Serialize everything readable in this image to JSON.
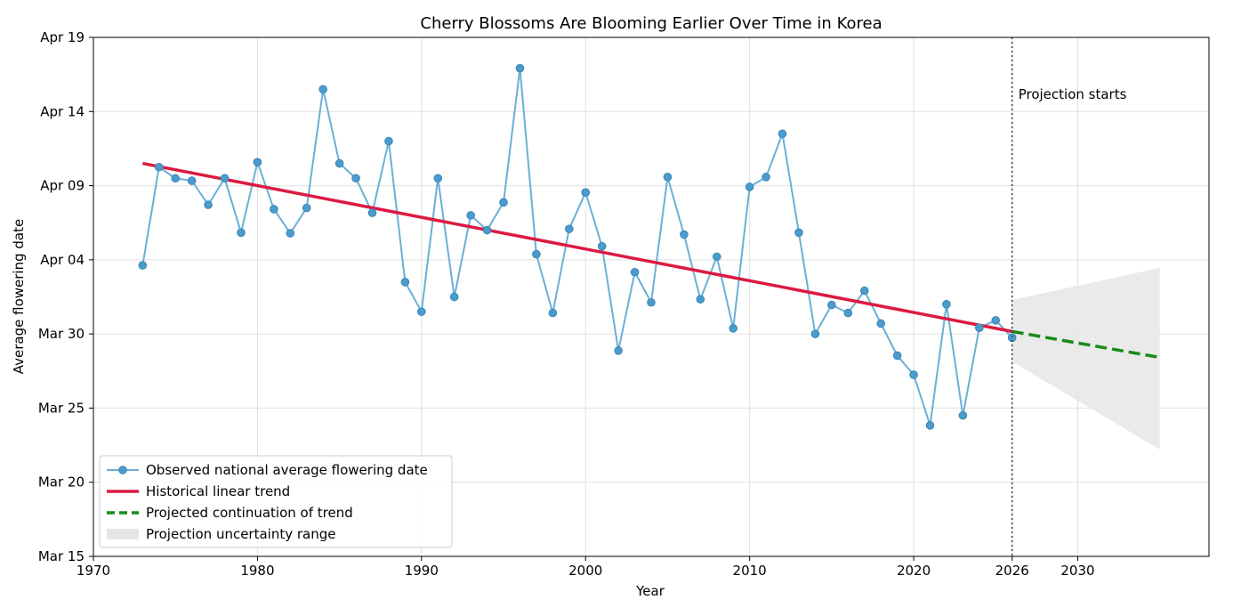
{
  "chart_data": {
    "type": "line",
    "title": "Cherry Blossoms Are Blooming Earlier Over Time in Korea",
    "xlabel": "Year",
    "ylabel": "Average flowering date",
    "xlim": [
      1970,
      2038
    ],
    "ylim": [
      "Mar 15",
      "Apr 19"
    ],
    "x_ticks": [
      1970,
      1980,
      1990,
      2000,
      2010,
      2020,
      2026,
      2030
    ],
    "x_tick_labels": [
      "1970",
      "1980",
      "1990",
      "2000",
      "2010",
      "2020",
      "2026",
      "2030"
    ],
    "y_ticks": [
      "Mar 15",
      "Mar 20",
      "Mar 25",
      "Mar 30",
      "Apr 04",
      "Apr 09",
      "Apr 14",
      "Apr 19"
    ],
    "y_tick_labels": [
      "Mar 15",
      "Mar 20",
      "Mar 25",
      "Mar 30",
      "Apr 04",
      "Apr 09",
      "Apr 14",
      "Apr 19"
    ],
    "grid": true,
    "legend_position": "lower-left",
    "annotation": {
      "text": "Projection starts",
      "x": 2026
    },
    "series": [
      {
        "name": "Observed national average flowering date",
        "kind": "line-markers",
        "color": "#6ab0d6",
        "x": [
          1973,
          1974,
          1975,
          1976,
          1977,
          1978,
          1979,
          1980,
          1981,
          1982,
          1983,
          1984,
          1985,
          1986,
          1987,
          1988,
          1989,
          1990,
          1991,
          1992,
          1993,
          1994,
          1995,
          1996,
          1997,
          1998,
          1999,
          2000,
          2001,
          2002,
          2003,
          2004,
          2005,
          2006,
          2007,
          2008,
          2009,
          2010,
          2011,
          2012,
          2013,
          2014,
          2015,
          2016,
          2017,
          2018,
          2019,
          2020,
          2021,
          2022,
          2023,
          2024,
          2025,
          2026
        ],
        "y": [
          "Apr 03 15:00",
          "Apr 10 06:00",
          "Apr 09 12:00",
          "Apr 09 08:00",
          "Apr 07 17:00",
          "Apr 09 12:00",
          "Apr 05 20:00",
          "Apr 10 14:00",
          "Apr 07 10:00",
          "Apr 05 19:00",
          "Apr 07 12:00",
          "Apr 15 12:00",
          "Apr 10 12:00",
          "Apr 09 12:00",
          "Apr 07 04:00",
          "Apr 12 00:00",
          "Apr 02 12:00",
          "Mar 31 12:00",
          "Apr 09 12:00",
          "Apr 01 12:00",
          "Apr 07 00:00",
          "Apr 06 00:00",
          "Apr 07 21:00",
          "Apr 16 22:00",
          "Apr 04 09:00",
          "Mar 31 10:00",
          "Apr 06 02:00",
          "Apr 08 13:00",
          "Apr 04 22:00",
          "Mar 28 21:00",
          "Apr 03 04:00",
          "Apr 01 03:00",
          "Apr 09 14:00",
          "Apr 05 17:00",
          "Apr 01 08:00",
          "Apr 04 05:00",
          "Mar 30 09:00",
          "Apr 08 22:00",
          "Apr 09 14:00",
          "Apr 12 12:00",
          "Apr 05 20:00",
          "Mar 30 00:00",
          "Mar 31 23:00",
          "Mar 31 10:00",
          "Apr 01 22:00",
          "Mar 30 17:00",
          "Mar 28 13:00",
          "Mar 27 06:00",
          "Mar 23 20:00",
          "Apr 01 00:00",
          "Mar 24 12:00",
          "Mar 30 10:00",
          "Mar 30 22:00",
          "Mar 29 18:00"
        ]
      },
      {
        "name": "Historical linear trend",
        "kind": "line",
        "color": "#dc1a42",
        "x": [
          1973,
          2026
        ],
        "y": [
          "Apr 10 12:00",
          "Mar 30 04:00"
        ]
      },
      {
        "name": "Projected continuation of trend",
        "kind": "dashed-line",
        "color": "#1a8a1a",
        "x": [
          2026,
          2035
        ],
        "y": [
          "Mar 30 04:00",
          "Mar 28 10:00"
        ]
      },
      {
        "name": "Projection uncertainty range",
        "kind": "band",
        "color": "#e6e6e6",
        "x": [
          2026,
          2035
        ],
        "lower": [
          "Mar 28 03:00",
          "Mar 22 05:00"
        ],
        "upper": [
          "Apr 01 07:00",
          "Apr 03 11:00"
        ]
      }
    ]
  }
}
